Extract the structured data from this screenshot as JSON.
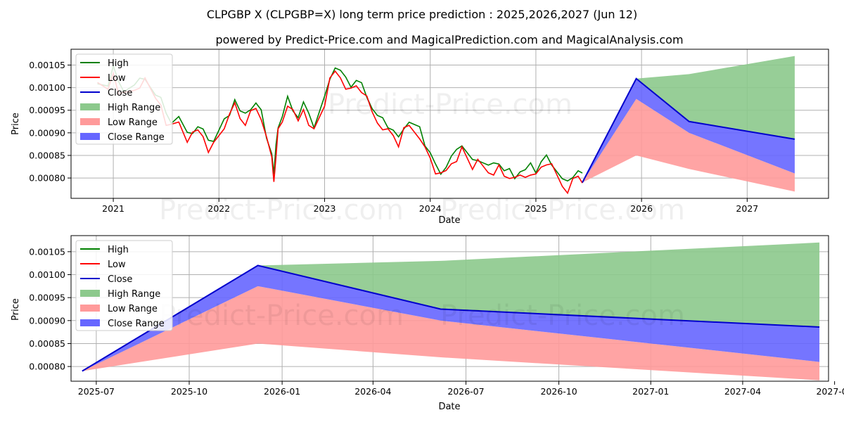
{
  "title": "CLPGBP X (CLPGBP=X) long term price prediction : 2025,2026,2027 (Jun 12)",
  "subtitle": "powered by Predict-Price.com and MagicalPrediction.com and MagicalAnalysis.com",
  "watermark": "Predict-Price.com",
  "colors": {
    "high": "#008000",
    "low": "#ff0000",
    "close": "#0000cc",
    "high_range": "#8cc98c",
    "low_range": "#ff9a9a",
    "close_range": "#6666ff",
    "grid": "#b0b0b0"
  },
  "legend": [
    "High",
    "Low",
    "Close",
    "High Range",
    "Low Range",
    "Close Range"
  ],
  "chart_data": [
    {
      "type": "line",
      "panel": "top",
      "xlabel": "Date",
      "ylabel": "Price",
      "xlim": [
        2020.6,
        2027.77
      ],
      "ylim": [
        0.000755,
        0.001085
      ],
      "xticks": [
        2021,
        2022,
        2023,
        2024,
        2025,
        2026,
        2027
      ],
      "xtick_labels": [
        "2021",
        "2022",
        "2023",
        "2024",
        "2025",
        "2026",
        "2027"
      ],
      "yticks": [
        0.0008,
        0.00085,
        0.0009,
        0.00095,
        0.001,
        0.00105
      ],
      "ytick_labels": [
        "0.00080",
        "0.00085",
        "0.00090",
        "0.00095",
        "0.00100",
        "0.00105"
      ],
      "history": {
        "x": [
          2020.85,
          2020.95,
          2021.0,
          2021.05,
          2021.1,
          2021.2,
          2021.25,
          2021.3,
          2021.4,
          2021.45,
          2021.5,
          2021.55,
          2021.62,
          2021.7,
          2021.75,
          2021.8,
          2021.85,
          2021.9,
          2021.95,
          2022.0,
          2022.05,
          2022.1,
          2022.15,
          2022.2,
          2022.25,
          2022.3,
          2022.35,
          2022.4,
          2022.45,
          2022.5,
          2022.52,
          2022.54,
          2022.56,
          2022.6,
          2022.65,
          2022.7,
          2022.75,
          2022.8,
          2022.85,
          2022.9,
          2022.95,
          2023.0,
          2023.05,
          2023.1,
          2023.15,
          2023.2,
          2023.25,
          2023.3,
          2023.35,
          2023.4,
          2023.45,
          2023.5,
          2023.55,
          2023.6,
          2023.65,
          2023.7,
          2023.75,
          2023.8,
          2023.85,
          2023.9,
          2023.95,
          2024.0,
          2024.05,
          2024.1,
          2024.15,
          2024.2,
          2024.25,
          2024.3,
          2024.35,
          2024.4,
          2024.45,
          2024.5,
          2024.55,
          2024.6,
          2024.65,
          2024.7,
          2024.75,
          2024.8,
          2024.85,
          2024.9,
          2024.95,
          2025.0,
          2025.05,
          2025.1,
          2025.15,
          2025.2,
          2025.25,
          2025.3,
          2025.35,
          2025.4,
          2025.44
        ],
        "close": [
          0.00101,
          0.001,
          0.00104,
          0.001,
          0.00099,
          0.001,
          0.00101,
          0.00102,
          0.00098,
          0.00097,
          0.00093,
          0.00092,
          0.00093,
          0.00089,
          0.0009,
          0.00091,
          0.0009,
          0.00087,
          0.00088,
          0.0009,
          0.00092,
          0.00094,
          0.00097,
          0.00094,
          0.00093,
          0.00095,
          0.00096,
          0.00094,
          0.00089,
          0.00085,
          0.0008,
          0.00086,
          0.00091,
          0.00093,
          0.00097,
          0.00095,
          0.00093,
          0.00096,
          0.00093,
          0.00091,
          0.00094,
          0.00097,
          0.00102,
          0.00104,
          0.00103,
          0.00101,
          0.001,
          0.00101,
          0.001,
          0.00098,
          0.00095,
          0.00093,
          0.00092,
          0.00091,
          0.0009,
          0.00088,
          0.00091,
          0.00092,
          0.00091,
          0.0009,
          0.00087,
          0.00085,
          0.00082,
          0.00081,
          0.00082,
          0.00084,
          0.00085,
          0.00087,
          0.00085,
          0.00083,
          0.00084,
          0.00083,
          0.00082,
          0.00082,
          0.00083,
          0.00081,
          0.00081,
          0.0008,
          0.00081,
          0.00081,
          0.00082,
          0.00081,
          0.00083,
          0.00084,
          0.00083,
          0.00081,
          0.00079,
          0.00078,
          0.0008,
          0.00081,
          0.0008
        ]
      },
      "forecast": {
        "x": [
          2025.44,
          2025.95,
          2026.45,
          2027.45
        ],
        "high_range_top": [
          0.00079,
          0.00102,
          0.00103,
          0.00107
        ],
        "close_top": [
          0.00079,
          0.00102,
          0.000925,
          0.000886
        ],
        "close_bottom": [
          0.00079,
          0.000975,
          0.0009,
          0.00081
        ],
        "low_range_top": [
          0.00079,
          0.000975,
          0.0009,
          0.00081
        ],
        "low_range_bottom": [
          0.00079,
          0.00085,
          0.00082,
          0.00077
        ],
        "high_range_bottom": [
          0.00079,
          0.00102,
          0.000925,
          0.000886
        ]
      }
    },
    {
      "type": "area",
      "panel": "bottom",
      "xlabel": "Date",
      "ylabel": "Price",
      "xlim": [
        0,
        750
      ],
      "ylim": [
        0.000768,
        0.001085
      ],
      "xticks": [
        25,
        117,
        209,
        299,
        391,
        483,
        574,
        665
      ],
      "xtick_labels": [
        "2025-07",
        "2025-10",
        "2026-01",
        "2026-04",
        "2026-07",
        "2026-10",
        "2027-01",
        "2027-04",
        "2027-07"
      ],
      "xtick_values": [
        25,
        117,
        209,
        299,
        391,
        483,
        574,
        665,
        756
      ],
      "yticks": [
        0.0008,
        0.00085,
        0.0009,
        0.00095,
        0.001,
        0.00105
      ],
      "ytick_labels": [
        "0.00080",
        "0.00085",
        "0.00090",
        "0.00095",
        "0.00100",
        "0.00105"
      ],
      "forecast": {
        "x": [
          11,
          185,
          366,
          741
        ],
        "high_range_top": [
          0.00079,
          0.00102,
          0.00103,
          0.00107
        ],
        "high_range_bottom": [
          0.00079,
          0.00102,
          0.000925,
          0.000886
        ],
        "close_top": [
          0.00079,
          0.00102,
          0.000925,
          0.000886
        ],
        "close_bottom": [
          0.00079,
          0.000975,
          0.0009,
          0.00081
        ],
        "low_range_top": [
          0.00079,
          0.000975,
          0.0009,
          0.00081
        ],
        "low_range_bottom": [
          0.00079,
          0.00085,
          0.00082,
          0.00077
        ]
      }
    }
  ]
}
